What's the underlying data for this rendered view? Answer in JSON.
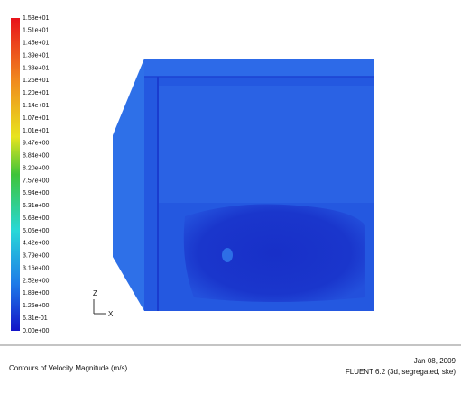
{
  "colorbar": {
    "levels": [
      "1.58e+01",
      "1.51e+01",
      "1.45e+01",
      "1.39e+01",
      "1.33e+01",
      "1.26e+01",
      "1.20e+01",
      "1.14e+01",
      "1.07e+01",
      "1.01e+01",
      "9.47e+00",
      "8.84e+00",
      "8.20e+00",
      "7.57e+00",
      "6.94e+00",
      "6.31e+00",
      "5.68e+00",
      "5.05e+00",
      "4.42e+00",
      "3.79e+00",
      "3.16e+00",
      "2.52e+00",
      "1.89e+00",
      "1.26e+00",
      "6.31e-01",
      "0.00e+00"
    ]
  },
  "axes": {
    "vertical": "Z",
    "horizontal": "X"
  },
  "footer": {
    "title": "Contours of Velocity Magnitude (m/s)",
    "date": "Jan 08, 2009",
    "version": "FLUENT 6.2 (3d, segregated, ske)"
  }
}
